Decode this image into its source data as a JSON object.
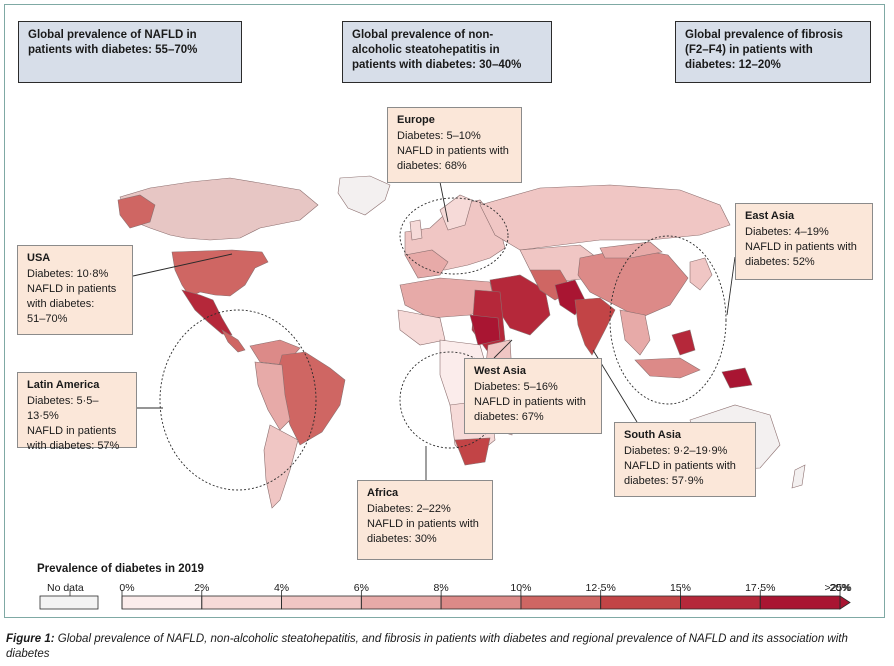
{
  "global_boxes": {
    "nafld": "Global prevalence of NAFLD in patients with diabetes: 55–70%",
    "nash": "Global prevalence of non-alcoholic steatohepatitis in patients with diabetes: 30–40%",
    "fibrosis": "Global prevalence of fibrosis (F2–F4) in patients with diabetes: 12–20%"
  },
  "regions": {
    "europe": {
      "title": "Europe",
      "lines": [
        "Diabetes: 5–10%",
        "NAFLD in patients with",
        "diabetes: 68%"
      ]
    },
    "usa": {
      "title": "USA",
      "lines": [
        "Diabetes: 10·8%",
        "NAFLD in patients",
        "with diabetes:",
        "51–70%"
      ]
    },
    "latin_america": {
      "title": "Latin America",
      "lines": [
        "Diabetes: 5·5–13·5%",
        "NAFLD in patients",
        "with diabetes: 57%"
      ]
    },
    "east_asia": {
      "title": "East Asia",
      "lines": [
        "Diabetes: 4–19%",
        "NAFLD in patients with",
        "diabetes: 52%"
      ]
    },
    "west_asia": {
      "title": "West Asia",
      "lines": [
        "Diabetes: 5–16%",
        "NAFLD in patients with",
        "diabetes: 67%"
      ]
    },
    "south_asia": {
      "title": "South Asia",
      "lines": [
        "Diabetes: 9·2–19·9%",
        "NAFLD in patients with",
        "diabetes: 57·9%"
      ]
    },
    "africa": {
      "title": "Africa",
      "lines": [
        "Diabetes: 2–22%",
        "NAFLD in patients with",
        " diabetes: 30%"
      ]
    }
  },
  "legend": {
    "title": "Prevalence of diabetes in 2019",
    "no_data": "No data",
    "ticks": [
      "0%",
      "2%",
      "4%",
      "6%",
      "8%",
      "10%",
      "12·5%",
      "15%",
      "17·5%",
      "20%",
      ">25%"
    ],
    "colors": [
      "#fbeceb",
      "#f6dad8",
      "#f0c6c4",
      "#e7aaa8",
      "#dc8a88",
      "#cf6663",
      "#c24446",
      "#b5283a",
      "#a91532"
    ],
    "no_data_color": "#f3f3f3"
  },
  "caption": {
    "label": "Figure 1:",
    "text": " Global prevalence of NAFLD, non-alcoholic steatohepatitis, and fibrosis in patients with diabetes and regional prevalence of NAFLD and its association with diabetes"
  }
}
